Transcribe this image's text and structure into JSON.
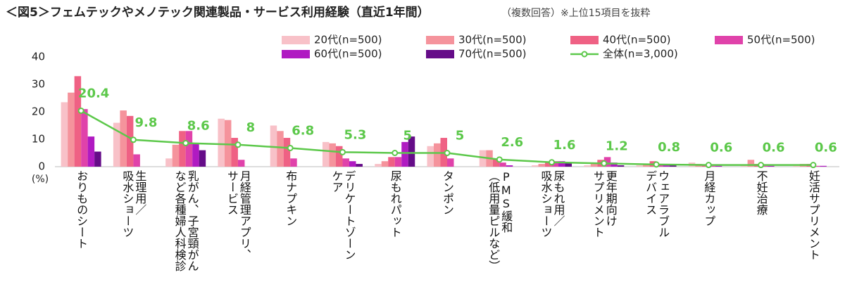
{
  "chart_data": {
    "type": "bar",
    "title": "＜図5＞フェムテックやメノテック関連製品・サービス利用経験（直近1年間）",
    "subtitle": "（複数回答）※上位15項目を抜粋",
    "y_label": "(%)",
    "categories": [
      "おりものシート",
      "生理用／\n吸水ショーツ",
      "乳がん、子宮頸がん\nなど各種婦人科検診",
      "月経管理アプリ、\nサービス",
      "布ナプキン",
      "デリケートゾーン\nケア",
      "尿もれパット",
      "タンポン",
      "PMS緩和\n（低用量ピルなど）",
      "尿もれ用／\n吸水ショーツ",
      "更年期向け\nサプリメント",
      "ウェアラブル\nデバイス",
      "月経カップ",
      "不妊治療",
      "妊活サプリメント"
    ],
    "series": [
      {
        "name": "20代(n=500)",
        "color": "#f8c1c8",
        "values": [
          23.5,
          16,
          3,
          17.5,
          15,
          9,
          1,
          7.5,
          6,
          0.5,
          0.5,
          0.5,
          1.5,
          0.5,
          0.3
        ]
      },
      {
        "name": "30代(n=500)",
        "color": "#f5939c",
        "values": [
          27,
          20.5,
          8,
          17,
          13,
          8.5,
          2,
          8.5,
          6,
          1,
          1,
          1,
          1,
          2.5,
          1
        ]
      },
      {
        "name": "40代(n=500)",
        "color": "#ef6184",
        "values": [
          33,
          18.5,
          13,
          10.5,
          10.5,
          7.5,
          3.5,
          10.5,
          3,
          1.5,
          2.5,
          2,
          0.5,
          1,
          1
        ]
      },
      {
        "name": "50代(n=500)",
        "color": "#e042aa",
        "values": [
          21,
          4.5,
          13,
          2.5,
          3,
          3,
          3.5,
          3,
          1.5,
          2,
          3.5,
          1,
          0.3,
          0.3,
          0.3
        ]
      },
      {
        "name": "60代(n=500)",
        "color": "#b01ac2",
        "values": [
          11,
          0,
          8.5,
          0,
          0,
          2,
          9,
          0,
          0.5,
          2,
          1.5,
          1,
          0.3,
          0.3,
          0.3
        ]
      },
      {
        "name": "70代(n=500)",
        "color": "#650c88",
        "values": [
          5.5,
          0,
          6,
          0,
          0,
          1,
          11,
          0,
          0,
          1.5,
          0.5,
          0.5,
          0,
          0,
          0
        ]
      },
      {
        "name": "全体(n=3,000)",
        "color": "#5cc84a",
        "type": "line",
        "values": [
          20.4,
          9.8,
          8.6,
          8,
          6.8,
          5.3,
          5,
          5,
          2.6,
          1.6,
          1.2,
          0.8,
          0.6,
          0.6,
          0.6
        ]
      }
    ],
    "ylim": [
      0,
      40
    ],
    "yticks": [
      0,
      10,
      20,
      30,
      40
    ],
    "grid": false
  }
}
